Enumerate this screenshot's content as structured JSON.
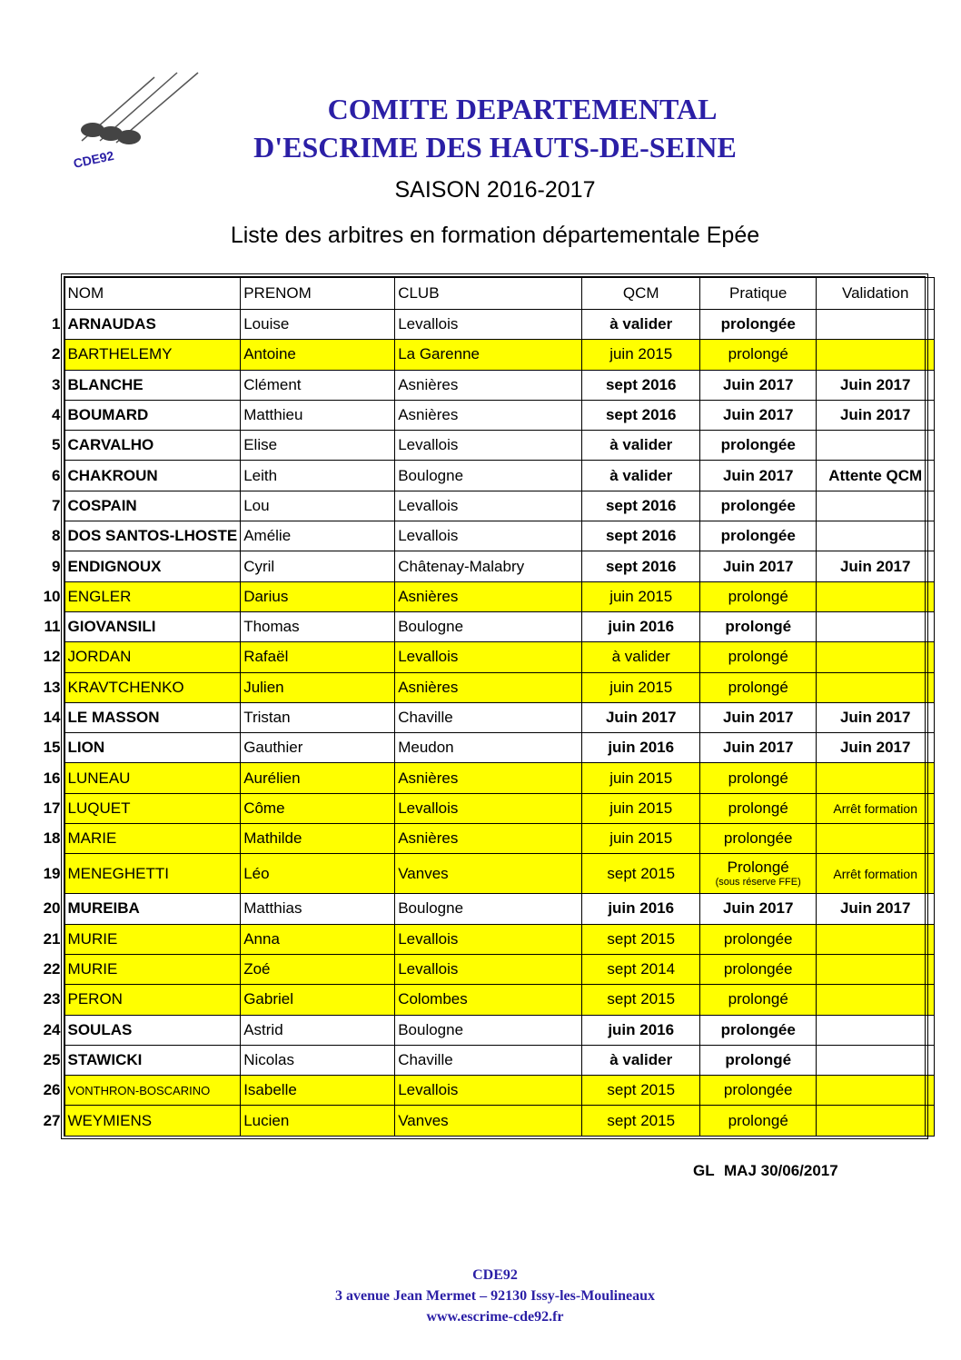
{
  "logo": {
    "text": "CDE92"
  },
  "header": {
    "title_line1": "COMITE DEPARTEMENTAL",
    "title_line2": "D'ESCRIME DES HAUTS-DE-SEINE",
    "season": "SAISON 2016-2017",
    "subtitle": "Liste des arbitres en formation départementale Epée"
  },
  "table": {
    "highlight_color": "#ffff00",
    "columns": [
      "NOM",
      "PRENOM",
      "CLUB",
      "QCM",
      "Pratique",
      "Validation"
    ],
    "rows": [
      {
        "n": "1",
        "cells": [
          "ARNAUDAS",
          "Louise",
          "Levallois",
          "à valider",
          "prolongée"
        ],
        "highlight": false
      },
      {
        "n": "2",
        "cells": [
          "BARTHELEMY",
          "Antoine",
          "La Garenne",
          "juin 2015",
          "prolongé"
        ],
        "highlight": true
      },
      {
        "n": "3",
        "cells": [
          "BLANCHE",
          "Clément",
          "Asnières",
          "sept 2016",
          "Juin 2017",
          "Juin 2017"
        ],
        "highlight": false
      },
      {
        "n": "4",
        "cells": [
          "BOUMARD",
          "Matthieu",
          "Asnières",
          "sept 2016",
          "Juin 2017",
          "Juin 2017"
        ],
        "highlight": false
      },
      {
        "n": "5",
        "cells": [
          "CARVALHO",
          "Elise",
          "Levallois",
          "à valider",
          "prolongée"
        ],
        "highlight": false
      },
      {
        "n": "6",
        "cells": [
          "CHAKROUN",
          "Leith",
          "Boulogne",
          "à valider",
          "Juin 2017",
          "Attente QCM"
        ],
        "highlight": false
      },
      {
        "n": "7",
        "cells": [
          "COSPAIN",
          "Lou",
          "Levallois",
          "sept 2016",
          "prolongée"
        ],
        "highlight": false
      },
      {
        "n": "8",
        "cells": [
          "DOS SANTOS-LHOSTE",
          "Amélie",
          "Levallois",
          "sept 2016",
          "prolongée"
        ],
        "highlight": false
      },
      {
        "n": "9",
        "cells": [
          "ENDIGNOUX",
          "Cyril",
          "Châtenay-Malabry",
          "sept 2016",
          "Juin 2017",
          "Juin 2017"
        ],
        "highlight": false
      },
      {
        "n": "10",
        "cells": [
          "ENGLER",
          "Darius",
          "Asnières",
          "juin 2015",
          "prolongé"
        ],
        "highlight": true
      },
      {
        "n": "11",
        "cells": [
          "GIOVANSILI",
          "Thomas",
          "Boulogne",
          "juin 2016",
          "prolongé"
        ],
        "highlight": false
      },
      {
        "n": "12",
        "cells": [
          "JORDAN",
          "Rafaël",
          "Levallois",
          "à valider",
          "prolongé"
        ],
        "highlight": true
      },
      {
        "n": "13",
        "cells": [
          "KRAVTCHENKO",
          "Julien",
          "Asnières",
          "juin 2015",
          "prolongé"
        ],
        "highlight": true
      },
      {
        "n": "14",
        "cells": [
          "LE MASSON",
          "Tristan",
          "Chaville",
          "Juin 2017",
          "Juin 2017",
          "Juin 2017"
        ],
        "highlight": false
      },
      {
        "n": "15",
        "cells": [
          "LION",
          "Gauthier",
          "Meudon",
          "juin 2016",
          "Juin 2017",
          "Juin 2017"
        ],
        "highlight": false
      },
      {
        "n": "16",
        "cells": [
          "LUNEAU",
          "Aurélien",
          "Asnières",
          "juin 2015",
          "prolongé"
        ],
        "highlight": true
      },
      {
        "n": "17",
        "cells": [
          "LUQUET",
          "Côme",
          "Levallois",
          "juin 2015",
          "prolongé",
          "Arrêt formation"
        ],
        "highlight": true
      },
      {
        "n": "18",
        "cells": [
          "MARIE",
          "Mathilde",
          "Asnières",
          "juin 2015",
          "prolongée"
        ],
        "highlight": true
      },
      {
        "n": "19",
        "cells": [
          "MENEGHETTI",
          "Léo",
          "Vanves",
          "sept 2015",
          "Prolongé",
          "Arrêt formation"
        ],
        "pratique_note": "(sous réserve FFE)",
        "highlight": true
      },
      {
        "n": "20",
        "cells": [
          "MUREIBA",
          "Matthias",
          "Boulogne",
          "juin 2016",
          "Juin 2017",
          "Juin 2017"
        ],
        "highlight": false
      },
      {
        "n": "21",
        "cells": [
          "MURIE",
          "Anna",
          "Levallois",
          "sept 2015",
          "prolongée"
        ],
        "highlight": true
      },
      {
        "n": "22",
        "cells": [
          "MURIE",
          "Zoé",
          "Levallois",
          "sept 2014",
          "prolongée"
        ],
        "highlight": true
      },
      {
        "n": "23",
        "cells": [
          "PERON",
          "Gabriel",
          "Colombes",
          "sept 2015",
          "prolongé"
        ],
        "highlight": true
      },
      {
        "n": "24",
        "cells": [
          "SOULAS",
          "Astrid",
          "Boulogne",
          "juin 2016",
          "prolongée"
        ],
        "highlight": false
      },
      {
        "n": "25",
        "cells": [
          "STAWICKI",
          "Nicolas",
          "Chaville",
          "à valider",
          "prolongé"
        ],
        "highlight": false
      },
      {
        "n": "26",
        "cells": [
          "VONTHRON-BOSCARINO",
          "Isabelle",
          "Levallois",
          "sept 2015",
          "prolongée"
        ],
        "highlight": true
      },
      {
        "n": "27",
        "cells": [
          "WEYMIENS",
          "Lucien",
          "Vanves",
          "sept 2015",
          "prolongé"
        ],
        "highlight": true
      }
    ]
  },
  "update": {
    "author": "GL",
    "date": "MAJ 30/06/2017"
  },
  "footer": {
    "name": "CDE92",
    "address": "3 avenue Jean Mermet – 92130 Issy-les-Moulineaux",
    "website": "www.escrime-cde92.fr"
  }
}
